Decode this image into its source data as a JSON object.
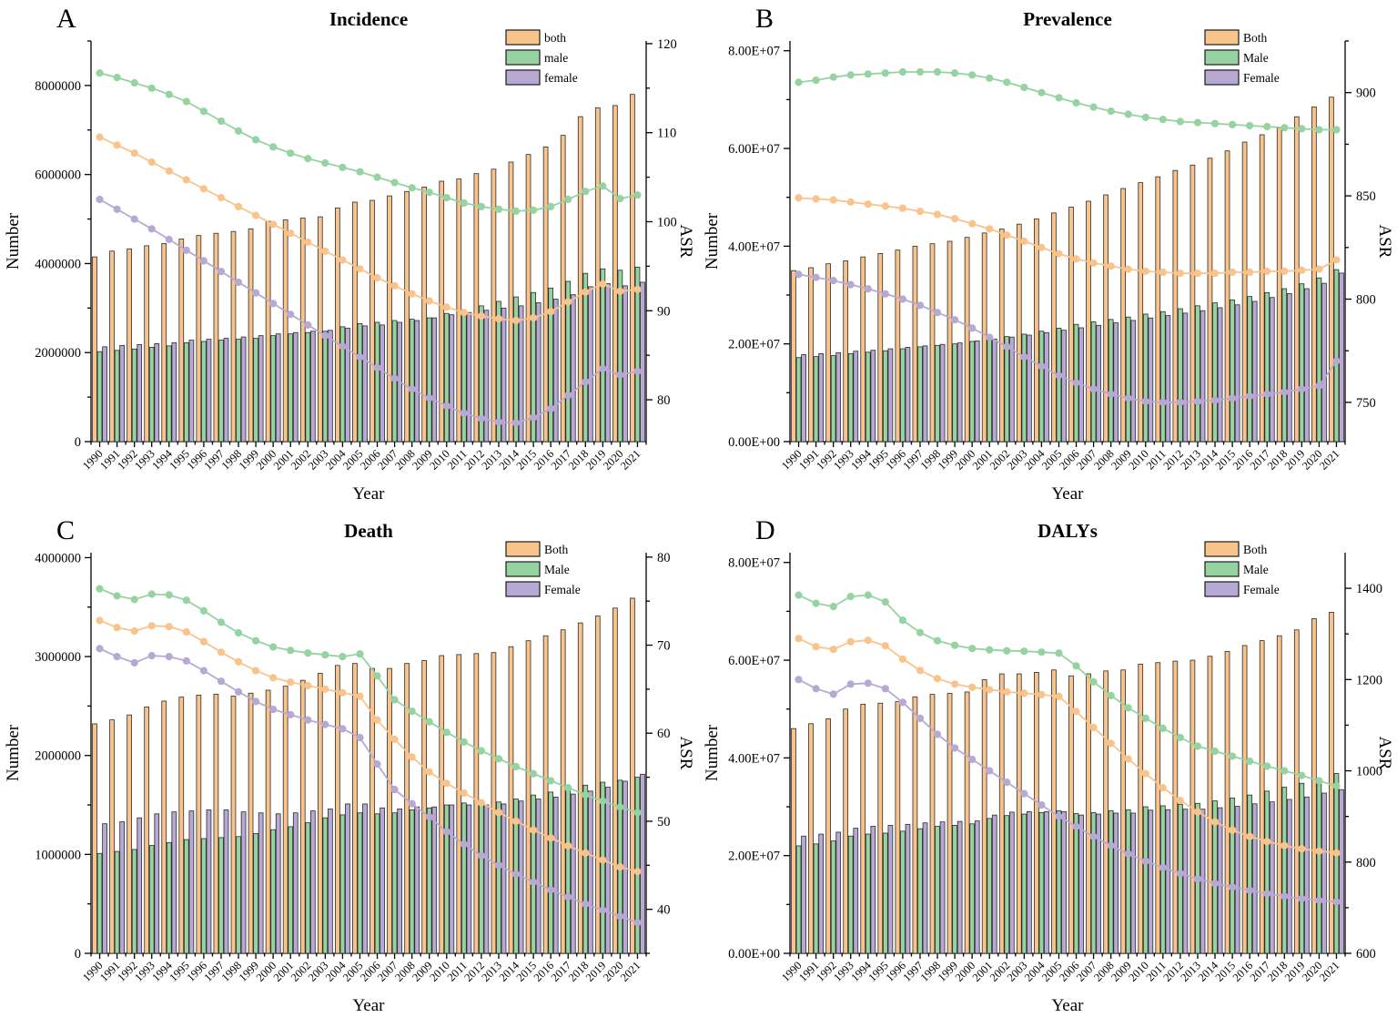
{
  "figure_title": "GBD trends figure (Incidence, Prevalence, Death, DALYs)",
  "years": [
    1990,
    1991,
    1992,
    1993,
    1994,
    1995,
    1996,
    1997,
    1998,
    1999,
    2000,
    2001,
    2002,
    2003,
    2004,
    2005,
    2006,
    2007,
    2008,
    2009,
    2010,
    2011,
    2012,
    2013,
    2014,
    2015,
    2016,
    2017,
    2018,
    2019,
    2020,
    2021
  ],
  "colors": {
    "both": "#F9C48C",
    "male": "#95D3A1",
    "female": "#B7A9D4",
    "bar_stroke": "#2b2b2b",
    "axis": "#000000"
  },
  "chart_data": [
    {
      "type": "bar+line",
      "panel": "A",
      "panel_letter": "A",
      "title": "Incidence",
      "xlabel": "Year",
      "ylabel_left": "Number",
      "ylabel_right": "ASR",
      "legend": [
        "both",
        "male",
        "female"
      ],
      "left_axis": {
        "max": 9000000,
        "ticks": [
          0,
          2000000,
          4000000,
          6000000,
          8000000
        ],
        "labels": [
          "0",
          "2000000",
          "4000000",
          "6000000",
          "8000000"
        ],
        "minor_step": 1000000
      },
      "right_axis": {
        "min": 75.3,
        "max": 120.3,
        "ticks": [
          80,
          90,
          100,
          110,
          120
        ],
        "labels": [
          "80",
          "90",
          "100",
          "110",
          "120"
        ],
        "minor_step": 5
      },
      "bars": {
        "both": [
          4150000,
          4280000,
          4330000,
          4400000,
          4450000,
          4550000,
          4630000,
          4680000,
          4720000,
          4780000,
          4950000,
          4980000,
          5020000,
          5050000,
          5250000,
          5380000,
          5420000,
          5520000,
          5620000,
          5720000,
          5850000,
          5900000,
          6020000,
          6120000,
          6280000,
          6450000,
          6620000,
          6880000,
          7300000,
          7500000,
          7550000,
          7800000
        ],
        "male": [
          2020000,
          2050000,
          2080000,
          2120000,
          2150000,
          2220000,
          2250000,
          2280000,
          2300000,
          2320000,
          2380000,
          2420000,
          2450000,
          2480000,
          2580000,
          2650000,
          2680000,
          2720000,
          2750000,
          2780000,
          2880000,
          2950000,
          3050000,
          3150000,
          3250000,
          3350000,
          3450000,
          3600000,
          3780000,
          3880000,
          3850000,
          3920000
        ],
        "female": [
          2130000,
          2160000,
          2180000,
          2200000,
          2220000,
          2280000,
          2300000,
          2320000,
          2350000,
          2380000,
          2420000,
          2450000,
          2480000,
          2500000,
          2550000,
          2600000,
          2620000,
          2680000,
          2720000,
          2780000,
          2850000,
          2900000,
          2950000,
          3000000,
          3050000,
          3120000,
          3200000,
          3300000,
          3480000,
          3550000,
          3500000,
          3580000
        ]
      },
      "asr_lines": {
        "both": [
          109.5,
          108.6,
          107.7,
          106.7,
          105.7,
          104.7,
          103.7,
          102.7,
          101.7,
          100.7,
          99.7,
          98.7,
          97.7,
          96.7,
          95.7,
          94.7,
          93.7,
          92.8,
          91.9,
          91.1,
          90.4,
          89.8,
          89.4,
          89.1,
          88.9,
          89.2,
          89.9,
          91.0,
          92.1,
          93.0,
          92.2,
          92.4
        ],
        "male": [
          116.7,
          116.2,
          115.6,
          115.0,
          114.3,
          113.5,
          112.4,
          111.3,
          110.2,
          109.2,
          108.4,
          107.7,
          107.1,
          106.6,
          106.1,
          105.6,
          105.0,
          104.4,
          103.8,
          103.3,
          102.7,
          102.1,
          101.7,
          101.4,
          101.2,
          101.3,
          101.7,
          102.5,
          103.4,
          104.0,
          102.6,
          103.0
        ],
        "female": [
          102.5,
          101.4,
          100.3,
          99.2,
          98.0,
          96.8,
          95.6,
          94.4,
          93.2,
          92.0,
          90.8,
          89.6,
          88.4,
          87.2,
          86.0,
          84.8,
          83.6,
          82.4,
          81.2,
          80.2,
          79.3,
          78.5,
          77.9,
          77.5,
          77.4,
          78.0,
          79.0,
          80.5,
          82.0,
          83.5,
          82.8,
          83.2
        ]
      }
    },
    {
      "type": "bar+line",
      "panel": "B",
      "panel_letter": "B",
      "title": "Prevalence",
      "xlabel": "Year",
      "ylabel_left": "Number",
      "ylabel_right": "ASR",
      "legend": [
        "Both",
        "Male",
        "Female"
      ],
      "left_axis": {
        "max": 82000000,
        "ticks": [
          0,
          20000000,
          40000000,
          60000000,
          80000000
        ],
        "labels": [
          "0.00E+00",
          "2.00E+07",
          "4.00E+07",
          "6.00E+07",
          "8.00E+07"
        ],
        "minor_step": 10000000
      },
      "right_axis": {
        "min": 731,
        "max": 925,
        "ticks": [
          750,
          800,
          850,
          900
        ],
        "labels": [
          "750",
          "800",
          "850",
          "900"
        ],
        "minor_step": 25
      },
      "bars": {
        "both": [
          35000000,
          35600000,
          36400000,
          37000000,
          37800000,
          38500000,
          39200000,
          40000000,
          40500000,
          41000000,
          41800000,
          42700000,
          43500000,
          44500000,
          45600000,
          46800000,
          48000000,
          49200000,
          50500000,
          51800000,
          53000000,
          54200000,
          55500000,
          56600000,
          58000000,
          59500000,
          61300000,
          62800000,
          64200000,
          66500000,
          68500000,
          70500000
        ],
        "male": [
          17200000,
          17400000,
          17600000,
          18000000,
          18300000,
          18600000,
          19000000,
          19400000,
          19700000,
          20000000,
          20500000,
          21000000,
          21500000,
          22000000,
          22600000,
          23200000,
          24000000,
          24500000,
          25000000,
          25500000,
          26100000,
          26600000,
          27200000,
          27800000,
          28400000,
          29000000,
          29700000,
          30500000,
          31300000,
          32300000,
          33500000,
          35200000
        ],
        "female": [
          17800000,
          18000000,
          18200000,
          18500000,
          18700000,
          19000000,
          19300000,
          19600000,
          19900000,
          20200000,
          20600000,
          21000000,
          21400000,
          21800000,
          22300000,
          22800000,
          23300000,
          23800000,
          24300000,
          24800000,
          25300000,
          25800000,
          26300000,
          26800000,
          27400000,
          28000000,
          28700000,
          29500000,
          30300000,
          31300000,
          32400000,
          34500000
        ]
      },
      "asr_lines": {
        "both": [
          849,
          848.5,
          848,
          847,
          846,
          845,
          844,
          842.5,
          841,
          839,
          836.5,
          834,
          831,
          828,
          825,
          822,
          819.5,
          817.5,
          816,
          814.5,
          813.5,
          813,
          812.5,
          812.5,
          812.5,
          813,
          813,
          813.5,
          813.5,
          814,
          814.5,
          819
        ],
        "male": [
          905,
          906,
          907.5,
          908.5,
          909,
          909.5,
          910,
          910,
          910,
          909.5,
          908.5,
          907,
          905,
          902.5,
          900,
          897.5,
          895,
          893,
          891,
          889.5,
          888,
          887,
          886,
          885.5,
          885,
          884.5,
          884,
          883.5,
          883,
          882.5,
          882,
          882
        ],
        "female": [
          812,
          810.5,
          809,
          807,
          805,
          802.5,
          800,
          797,
          793.5,
          790,
          786,
          781.5,
          777,
          772,
          767.5,
          763,
          759.5,
          756.5,
          754,
          752,
          750.5,
          750,
          750,
          750.5,
          751,
          752,
          753,
          754,
          755,
          756.5,
          758,
          770
        ]
      }
    },
    {
      "type": "bar+line",
      "panel": "C",
      "panel_letter": "C",
      "title": "Death",
      "xlabel": "Year",
      "ylabel_left": "Number",
      "ylabel_right": "ASR",
      "legend": [
        "Both",
        "Male",
        "Female"
      ],
      "left_axis": {
        "max": 4050000,
        "ticks": [
          0,
          1000000,
          2000000,
          3000000,
          4000000
        ],
        "labels": [
          "0",
          "1000000",
          "2000000",
          "3000000",
          "4000000"
        ],
        "minor_step": 500000
      },
      "right_axis": {
        "min": 35,
        "max": 80.5,
        "ticks": [
          40,
          50,
          60,
          70,
          80
        ],
        "labels": [
          "40",
          "50",
          "60",
          "70",
          "80"
        ],
        "minor_step": 5
      },
      "bars": {
        "both": [
          2320000,
          2360000,
          2410000,
          2490000,
          2550000,
          2590000,
          2610000,
          2620000,
          2600000,
          2630000,
          2660000,
          2700000,
          2760000,
          2830000,
          2910000,
          2930000,
          2880000,
          2880000,
          2930000,
          2960000,
          3010000,
          3020000,
          3030000,
          3040000,
          3100000,
          3160000,
          3210000,
          3270000,
          3340000,
          3410000,
          3490000,
          3590000
        ],
        "male": [
          1010000,
          1030000,
          1050000,
          1090000,
          1120000,
          1150000,
          1160000,
          1170000,
          1180000,
          1210000,
          1250000,
          1280000,
          1320000,
          1370000,
          1400000,
          1420000,
          1410000,
          1420000,
          1450000,
          1470000,
          1500000,
          1520000,
          1530000,
          1530000,
          1560000,
          1600000,
          1630000,
          1660000,
          1700000,
          1730000,
          1750000,
          1780000
        ],
        "female": [
          1310000,
          1330000,
          1370000,
          1410000,
          1430000,
          1440000,
          1450000,
          1450000,
          1430000,
          1420000,
          1410000,
          1420000,
          1440000,
          1460000,
          1510000,
          1510000,
          1470000,
          1460000,
          1480000,
          1480000,
          1500000,
          1500000,
          1500000,
          1510000,
          1540000,
          1560000,
          1580000,
          1610000,
          1640000,
          1680000,
          1740000,
          1810000
        ]
      },
      "asr_lines": {
        "both": [
          72.8,
          72.0,
          71.6,
          72.2,
          72.1,
          71.5,
          70.4,
          69.2,
          68.1,
          67.1,
          66.3,
          65.8,
          65.4,
          65.0,
          64.6,
          64.2,
          61.5,
          59.3,
          57.3,
          55.6,
          54.3,
          53.2,
          52.1,
          51.0,
          50.0,
          49.0,
          48.1,
          47.2,
          46.4,
          45.6,
          44.8,
          44.3
        ],
        "male": [
          76.4,
          75.6,
          75.2,
          75.8,
          75.7,
          75.1,
          73.9,
          72.6,
          71.4,
          70.5,
          69.8,
          69.4,
          69.1,
          68.9,
          68.7,
          69.0,
          66.5,
          63.8,
          62.5,
          61.3,
          60.1,
          59.0,
          58.0,
          57.1,
          56.2,
          55.4,
          54.6,
          53.8,
          53.0,
          52.3,
          51.6,
          51.0
        ],
        "female": [
          69.6,
          68.7,
          68.0,
          68.8,
          68.7,
          68.2,
          67.1,
          65.9,
          64.7,
          63.6,
          62.7,
          62.1,
          61.5,
          61.0,
          60.5,
          59.5,
          56.5,
          53.6,
          52.0,
          50.5,
          48.8,
          47.4,
          46.1,
          45.0,
          44.0,
          43.1,
          42.2,
          41.4,
          40.6,
          39.9,
          39.2,
          38.5
        ]
      }
    },
    {
      "type": "bar+line",
      "panel": "D",
      "panel_letter": "D",
      "title": "DALYs",
      "xlabel": "Year",
      "ylabel_left": "Number",
      "ylabel_right": "ASR",
      "legend": [
        "Both",
        "Male",
        "Female"
      ],
      "left_axis": {
        "max": 82000000,
        "ticks": [
          0,
          20000000,
          40000000,
          60000000,
          80000000
        ],
        "labels": [
          "0.00E+00",
          "2.00E+07",
          "4.00E+07",
          "6.00E+07",
          "8.00E+07"
        ],
        "minor_step": 10000000
      },
      "right_axis": {
        "min": 600,
        "max": 1478,
        "ticks": [
          600,
          800,
          1000,
          1200,
          1400
        ],
        "labels": [
          "600",
          "800",
          "1000",
          "1200",
          "1400"
        ],
        "minor_step": 100
      },
      "bars": {
        "both": [
          46000000,
          47000000,
          48000000,
          50000000,
          51000000,
          51200000,
          51500000,
          52500000,
          53000000,
          53200000,
          53500000,
          56000000,
          57200000,
          57200000,
          57500000,
          58000000,
          56800000,
          57200000,
          57800000,
          58000000,
          59200000,
          59500000,
          59800000,
          60000000,
          60800000,
          61800000,
          63000000,
          64000000,
          65000000,
          66200000,
          68500000,
          69800000
        ],
        "male": [
          22000000,
          22400000,
          23000000,
          24000000,
          24400000,
          24600000,
          25000000,
          25500000,
          26000000,
          26200000,
          26500000,
          27600000,
          28200000,
          28500000,
          28800000,
          29200000,
          28600000,
          28800000,
          29200000,
          29400000,
          30000000,
          30200000,
          30500000,
          30700000,
          31200000,
          31800000,
          32400000,
          33200000,
          34000000,
          34800000,
          35800000,
          36800000
        ],
        "female": [
          24000000,
          24400000,
          24800000,
          25600000,
          26000000,
          26200000,
          26400000,
          26700000,
          26900000,
          27000000,
          27100000,
          28300000,
          28900000,
          29000000,
          29000000,
          29000000,
          28300000,
          28500000,
          28700000,
          28700000,
          29300000,
          29400000,
          29500000,
          29500000,
          29800000,
          30100000,
          30600000,
          31000000,
          31500000,
          32000000,
          32800000,
          33500000
        ]
      },
      "asr_lines": {
        "both": [
          1290,
          1272,
          1266,
          1283,
          1286,
          1274,
          1245,
          1220,
          1202,
          1190,
          1183,
          1178,
          1173,
          1170,
          1167,
          1163,
          1130,
          1095,
          1060,
          1026,
          994,
          963,
          935,
          910,
          888,
          870,
          856,
          845,
          836,
          829,
          824,
          820
        ],
        "male": [
          1385,
          1367,
          1360,
          1382,
          1385,
          1370,
          1330,
          1303,
          1285,
          1275,
          1268,
          1265,
          1263,
          1262,
          1260,
          1258,
          1230,
          1195,
          1165,
          1138,
          1115,
          1093,
          1073,
          1054,
          1043,
          1032,
          1021,
          1010,
          1000,
          990,
          978,
          967
        ],
        "female": [
          1200,
          1180,
          1168,
          1190,
          1192,
          1180,
          1150,
          1115,
          1080,
          1050,
          1025,
          1000,
          975,
          950,
          925,
          900,
          878,
          856,
          836,
          818,
          802,
          788,
          775,
          763,
          753,
          745,
          738,
          731,
          725,
          720,
          716,
          713
        ]
      }
    }
  ]
}
